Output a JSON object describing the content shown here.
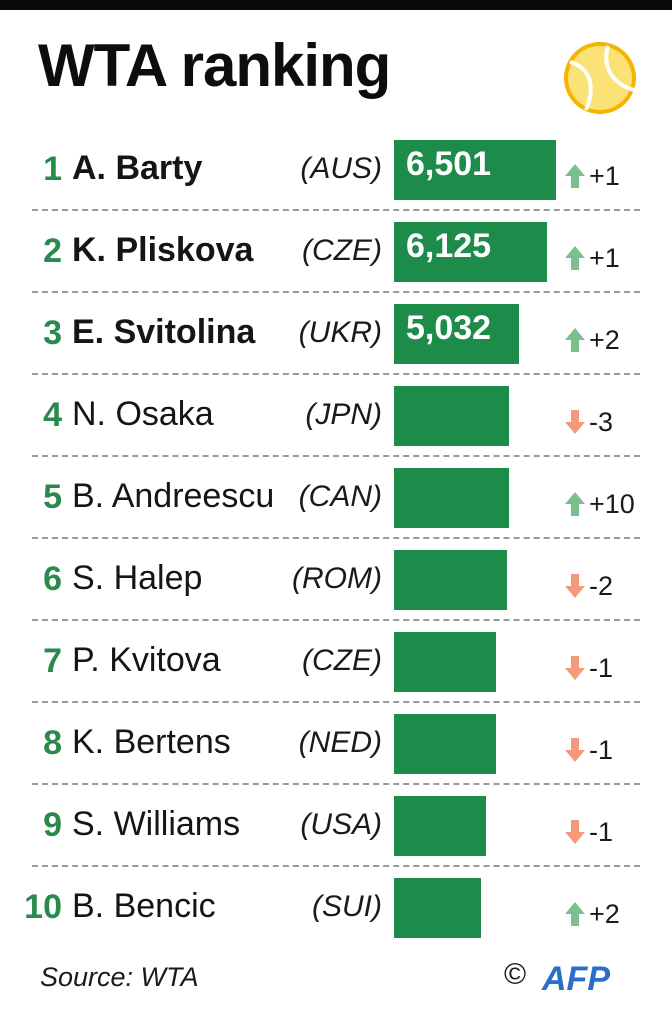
{
  "title": "WTA ranking",
  "source": "Source: WTA",
  "copyright": "©",
  "logo_text": "AFP",
  "colors": {
    "bar": "#1d8c4a",
    "rank": "#2a8a4e",
    "up": "#7bbf8f",
    "down": "#f29a7a"
  },
  "chart_data": {
    "type": "bar",
    "title": "WTA ranking",
    "categories": [
      "A. Barty",
      "K. Pliskova",
      "E. Svitolina",
      "N. Osaka",
      "B. Andreescu",
      "S. Halep",
      "P. Kvitova",
      "K. Bertens",
      "S. Williams",
      "B. Bencic"
    ],
    "rows": [
      {
        "rank": "1",
        "name": "A. Barty",
        "country": "(AUS)",
        "points": 6501,
        "points_label": "6,501",
        "change": "+1",
        "direction": "up"
      },
      {
        "rank": "2",
        "name": "K. Pliskova",
        "country": "(CZE)",
        "points": 6125,
        "points_label": "6,125",
        "change": "+1",
        "direction": "up"
      },
      {
        "rank": "3",
        "name": "E. Svitolina",
        "country": "(UKR)",
        "points": 5032,
        "points_label": "5,032",
        "change": "+2",
        "direction": "up"
      },
      {
        "rank": "4",
        "name": "N. Osaka",
        "country": "(JPN)",
        "points": 4600,
        "points_label": "",
        "change": "-3",
        "direction": "down"
      },
      {
        "rank": "5",
        "name": "B. Andreescu",
        "country": "(CAN)",
        "points": 4600,
        "points_label": "",
        "change": "+10",
        "direction": "up"
      },
      {
        "rank": "6",
        "name": "S. Halep",
        "country": "(ROM)",
        "points": 4550,
        "points_label": "",
        "change": "-2",
        "direction": "down"
      },
      {
        "rank": "7",
        "name": "P. Kvitova",
        "country": "(CZE)",
        "points": 4100,
        "points_label": "",
        "change": "-1",
        "direction": "down"
      },
      {
        "rank": "8",
        "name": "K. Bertens",
        "country": "(NED)",
        "points": 4100,
        "points_label": "",
        "change": "-1",
        "direction": "down"
      },
      {
        "rank": "9",
        "name": "S. Williams",
        "country": "(USA)",
        "points": 3700,
        "points_label": "",
        "change": "-1",
        "direction": "down"
      },
      {
        "rank": "10",
        "name": "B. Bencic",
        "country": "(SUI)",
        "points": 3500,
        "points_label": "",
        "change": "+2",
        "direction": "up"
      }
    ],
    "xlim": [
      0,
      6501
    ],
    "grid": false,
    "legend": "none"
  }
}
